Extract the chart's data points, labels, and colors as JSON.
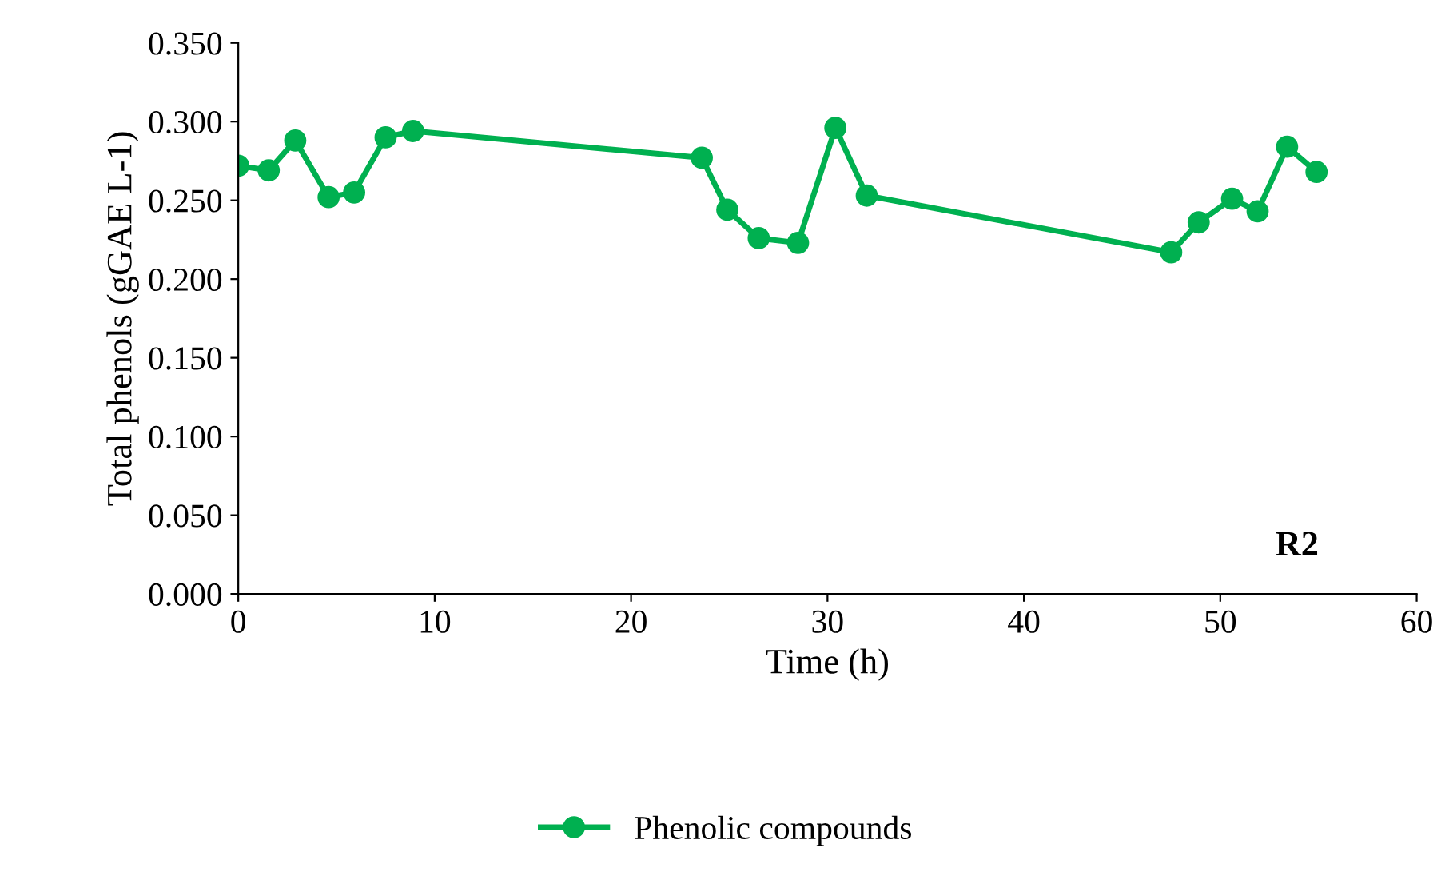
{
  "chart_data": {
    "type": "line",
    "xlabel": "Time (h)",
    "ylabel": "Total phenols (gGAE L-1)",
    "x": [
      0,
      1.55,
      2.9,
      4.6,
      5.9,
      7.5,
      8.9,
      23.6,
      24.9,
      26.5,
      28.5,
      30.4,
      32.0,
      47.5,
      48.9,
      50.6,
      51.9,
      53.4,
      54.9
    ],
    "series": [
      {
        "name": "Phenolic compounds",
        "color": "#00b050",
        "values": [
          0.272,
          0.269,
          0.288,
          0.252,
          0.255,
          0.29,
          0.294,
          0.277,
          0.244,
          0.226,
          0.223,
          0.296,
          0.253,
          0.217,
          0.236,
          0.251,
          0.243,
          0.284,
          0.268
        ]
      }
    ],
    "xlim": [
      0,
      60
    ],
    "xticks": [
      0,
      10,
      20,
      30,
      40,
      50,
      60
    ],
    "ylim": [
      0,
      0.35
    ],
    "yticks": [
      {
        "value": 0,
        "label": "0.000"
      },
      {
        "value": 0.05,
        "label": "0.050"
      },
      {
        "value": 0.1,
        "label": "0.100"
      },
      {
        "value": 0.15,
        "label": "0.150"
      },
      {
        "value": 0.2,
        "label": "0.200"
      },
      {
        "value": 0.25,
        "label": "0.250"
      },
      {
        "value": 0.3,
        "label": "0.300"
      },
      {
        "value": 0.35,
        "label": "0.350"
      }
    ],
    "annotations": [
      "R2"
    ],
    "grid": false,
    "legend": "bottom",
    "marker": "circle",
    "line_style": "solid"
  }
}
